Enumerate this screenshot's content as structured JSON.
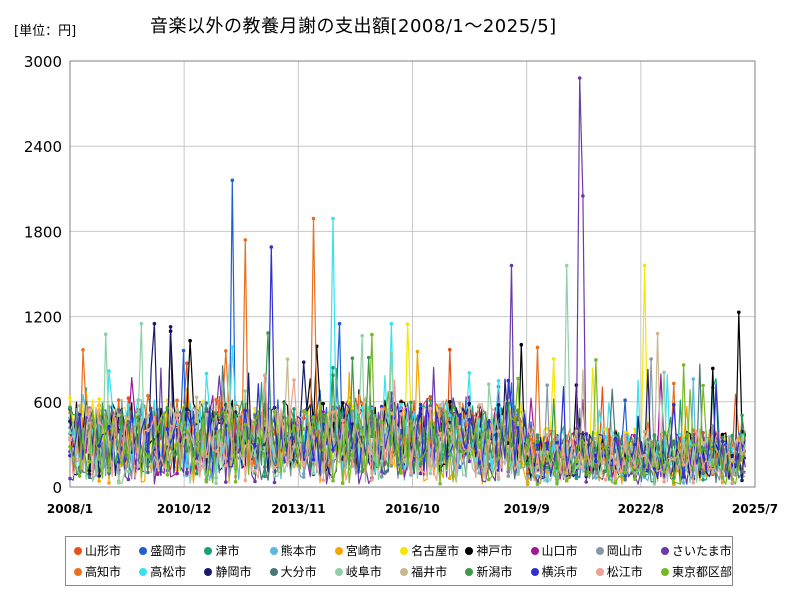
{
  "header": {
    "unit_label": "[単位：円]",
    "title": "音楽以外の教養月謝の支出額[2008/1～2025/5]"
  },
  "chart_data": {
    "type": "line",
    "title": "音楽以外の教養月謝の支出額[2008/1～2025/5]",
    "ylabel": "[単位：円]",
    "ylim": [
      0,
      3000
    ],
    "yticks": [
      "0",
      "600",
      "1200",
      "1800",
      "2400",
      "3000"
    ],
    "xticks": [
      "2008/1",
      "2010/12",
      "2013/11",
      "2016/10",
      "2019/9",
      "2022/8",
      "2025/7"
    ],
    "grid": true,
    "legend_position": "bottom",
    "series": [
      {
        "name": "山形市",
        "color": "#e8501a"
      },
      {
        "name": "盛岡市",
        "color": "#1f5fd0"
      },
      {
        "name": "津市",
        "color": "#18a07a"
      },
      {
        "name": "熊本市",
        "color": "#5bb8e0"
      },
      {
        "name": "宮崎市",
        "color": "#f0a800"
      },
      {
        "name": "名古屋市",
        "color": "#f5e600"
      },
      {
        "name": "神戸市",
        "color": "#000000"
      },
      {
        "name": "山口市",
        "color": "#a0189a"
      },
      {
        "name": "岡山市",
        "color": "#8898a8"
      },
      {
        "name": "さいたま市",
        "color": "#6a3aa8"
      },
      {
        "name": "高知市",
        "color": "#e87020"
      },
      {
        "name": "高松市",
        "color": "#38e0f0"
      },
      {
        "name": "静岡市",
        "color": "#1a1a6a"
      },
      {
        "name": "大分市",
        "color": "#4a7878"
      },
      {
        "name": "岐阜市",
        "color": "#90d0a8"
      },
      {
        "name": "福井市",
        "color": "#c8b890"
      },
      {
        "name": "新潟市",
        "color": "#3a9a4a"
      },
      {
        "name": "横浜市",
        "color": "#3030d0"
      },
      {
        "name": "松江市",
        "color": "#f0a090"
      },
      {
        "name": "東京都区部",
        "color": "#78b828"
      }
    ],
    "notable_values": [
      {
        "series": "さいたま市",
        "x": "2021/2",
        "y": 2880
      },
      {
        "series": "さいたま市",
        "x": "2021/3",
        "y": 2050
      },
      {
        "series": "盛岡市",
        "x": "2012/3",
        "y": 2160
      },
      {
        "series": "高知市",
        "x": "2014/4",
        "y": 1890
      },
      {
        "series": "高松市",
        "x": "2014/10",
        "y": 1890
      },
      {
        "series": "高知市",
        "x": "2012/7",
        "y": 1740
      },
      {
        "series": "横浜市",
        "x": "2013/3",
        "y": 1690
      },
      {
        "series": "名古屋市",
        "x": "2022/10",
        "y": 1560
      },
      {
        "series": "岐阜市",
        "x": "2020/10",
        "y": 1560
      },
      {
        "series": "さいたま市",
        "x": "2019/5",
        "y": 1560
      },
      {
        "series": "神戸市",
        "x": "2025/3",
        "y": 1230
      }
    ]
  }
}
